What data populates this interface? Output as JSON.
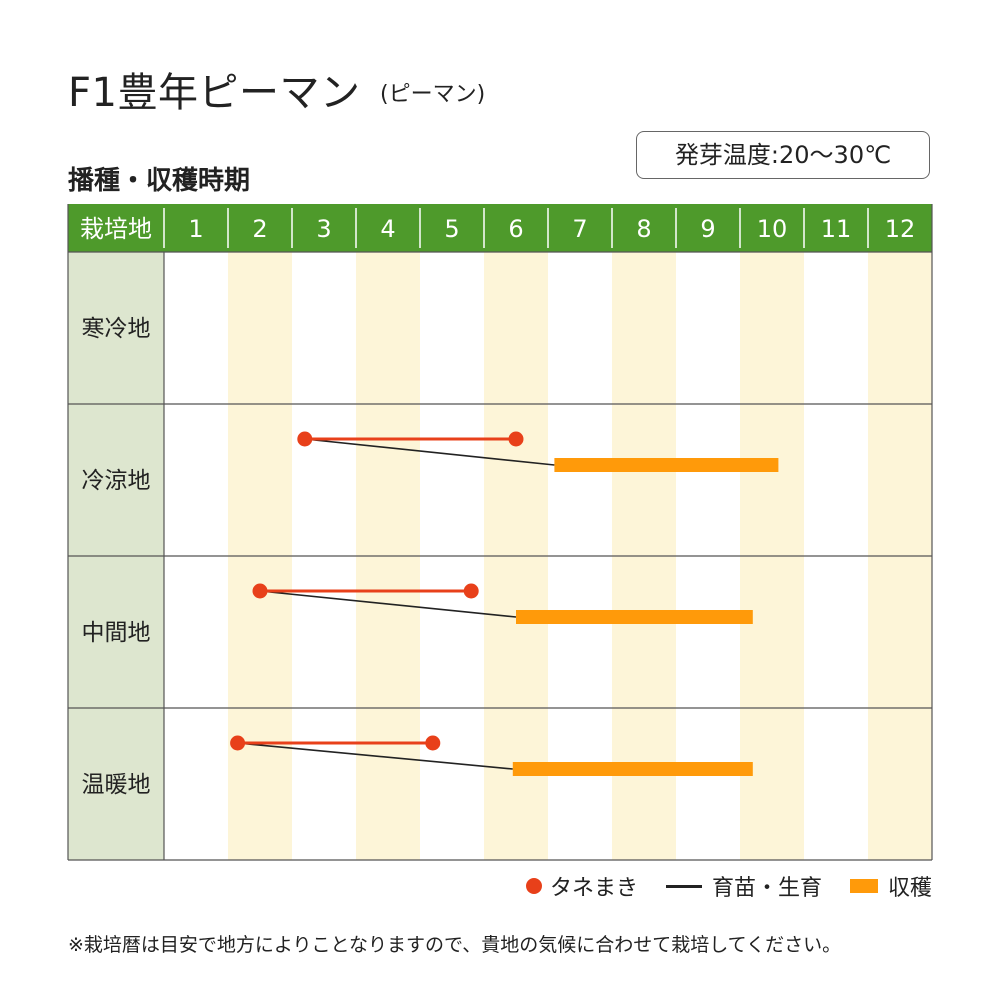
{
  "header": {
    "title": "F1豊年ピーマン",
    "subtitle": "(ピーマン)",
    "section": "播種・収穫時期",
    "germination": "発芽温度:20〜30℃"
  },
  "chart_data": {
    "type": "gantt",
    "column_header": "栽培地",
    "months": [
      "1",
      "2",
      "3",
      "4",
      "5",
      "6",
      "7",
      "8",
      "9",
      "10",
      "11",
      "12"
    ],
    "regions": [
      {
        "name": "寒冷地",
        "sowing": null,
        "harvest": null
      },
      {
        "name": "冷涼地",
        "sowing": [
          3.2,
          6.5
        ],
        "harvest": [
          7.1,
          10.6
        ]
      },
      {
        "name": "中間地",
        "sowing": [
          2.5,
          5.8
        ],
        "harvest": [
          6.5,
          10.2
        ]
      },
      {
        "name": "温暖地",
        "sowing": [
          2.15,
          5.2
        ],
        "harvest": [
          6.45,
          10.2
        ]
      }
    ],
    "colors": {
      "header_bg": "#4e9a2b",
      "region_bg": "#dde6cf",
      "alt_column": "#fdf5d8",
      "sowing": "#e8401a",
      "nursery": "#222222",
      "harvest": "#ff9a0a",
      "grid": "#555555"
    },
    "legend": [
      {
        "key": "sowing",
        "label": "タネまき"
      },
      {
        "key": "nursery",
        "label": "育苗・生育"
      },
      {
        "key": "harvest",
        "label": "収穫"
      }
    ]
  },
  "footnote": "※栽培暦は目安で地方によりことなりますので、貴地の気候に合わせて栽培してください。"
}
